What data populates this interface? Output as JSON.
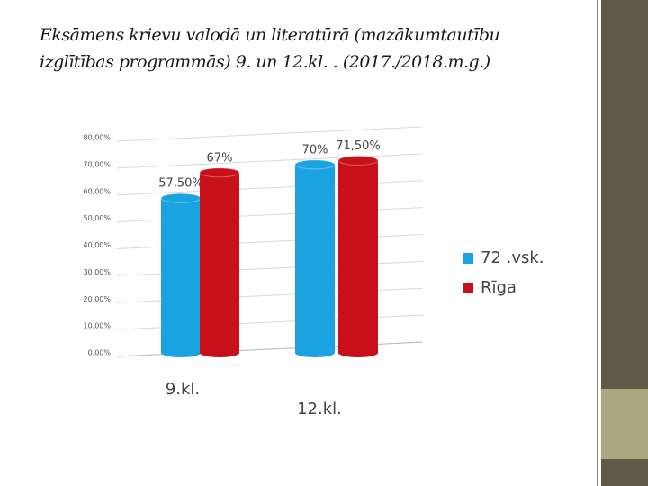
{
  "chart_data": {
    "type": "bar",
    "title": "Eksāmens krievu valodā un literatūrā (mazākumtautību izglītības programmās) 9. un 12.kl. . (2017./2018.m.g.)",
    "categories": [
      "9.kl.",
      "12.kl."
    ],
    "series": [
      {
        "name": "72 .vsk.",
        "color": "#1aa3e0",
        "values": [
          57.5,
          70
        ],
        "value_labels": [
          "57,50%",
          "70%"
        ]
      },
      {
        "name": "Rīga",
        "color": "#c8101a",
        "values": [
          67,
          71.5
        ],
        "value_labels": [
          "67%",
          "71,50%"
        ]
      }
    ],
    "ylim": [
      0,
      80
    ],
    "yticks": [
      {
        "value": 0,
        "label": "0.00%"
      },
      {
        "value": 10,
        "label": "10,00%"
      },
      {
        "value": 20,
        "label": "20,00%"
      },
      {
        "value": 30,
        "label": "30,00%"
      },
      {
        "value": 40,
        "label": "40,00%"
      },
      {
        "value": 50,
        "label": "50,00%"
      },
      {
        "value": 60,
        "label": "60,00%"
      },
      {
        "value": 70,
        "label": "70,00%"
      },
      {
        "value": 80,
        "label": "80,00%"
      }
    ],
    "grid": true,
    "legend": "right"
  }
}
